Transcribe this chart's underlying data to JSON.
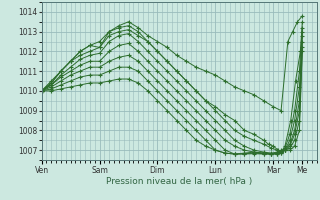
{
  "xlabel": "Pression niveau de la mer( hPa )",
  "bg_color": "#cce8e0",
  "grid_color": "#99bbbb",
  "line_color": "#2d6e2d",
  "marker": "+",
  "ylim": [
    1006.5,
    1014.5
  ],
  "yticks": [
    1007,
    1008,
    1009,
    1010,
    1011,
    1012,
    1013,
    1014
  ],
  "xtick_labels": [
    "Ven",
    "Sam",
    "Dim",
    "Lun",
    "Mar",
    "Me"
  ],
  "xtick_positions": [
    0,
    60,
    120,
    180,
    240,
    270
  ],
  "xlim": [
    0,
    285
  ],
  "series": [
    [
      [
        0,
        1010.0
      ],
      [
        10,
        1010.5
      ],
      [
        20,
        1011.0
      ],
      [
        30,
        1011.5
      ],
      [
        40,
        1011.8
      ],
      [
        50,
        1012.0
      ],
      [
        60,
        1012.2
      ],
      [
        70,
        1013.0
      ],
      [
        80,
        1013.3
      ],
      [
        90,
        1013.5
      ],
      [
        100,
        1013.2
      ],
      [
        110,
        1012.8
      ],
      [
        120,
        1012.5
      ],
      [
        130,
        1012.2
      ],
      [
        140,
        1011.8
      ],
      [
        150,
        1011.5
      ],
      [
        160,
        1011.2
      ],
      [
        170,
        1011.0
      ],
      [
        180,
        1010.8
      ],
      [
        190,
        1010.5
      ],
      [
        200,
        1010.2
      ],
      [
        210,
        1010.0
      ],
      [
        220,
        1009.8
      ],
      [
        230,
        1009.5
      ],
      [
        240,
        1009.2
      ],
      [
        248,
        1009.0
      ],
      [
        255,
        1012.5
      ],
      [
        260,
        1013.0
      ],
      [
        265,
        1013.5
      ],
      [
        270,
        1013.8
      ]
    ],
    [
      [
        0,
        1010.0
      ],
      [
        10,
        1010.4
      ],
      [
        20,
        1011.0
      ],
      [
        30,
        1011.5
      ],
      [
        40,
        1012.0
      ],
      [
        50,
        1012.3
      ],
      [
        60,
        1012.5
      ],
      [
        70,
        1013.0
      ],
      [
        80,
        1013.2
      ],
      [
        90,
        1013.3
      ],
      [
        100,
        1013.0
      ],
      [
        110,
        1012.5
      ],
      [
        120,
        1012.0
      ],
      [
        130,
        1011.5
      ],
      [
        140,
        1011.0
      ],
      [
        150,
        1010.5
      ],
      [
        160,
        1010.0
      ],
      [
        170,
        1009.5
      ],
      [
        180,
        1009.2
      ],
      [
        190,
        1008.8
      ],
      [
        200,
        1008.5
      ],
      [
        210,
        1008.0
      ],
      [
        220,
        1007.8
      ],
      [
        230,
        1007.5
      ],
      [
        235,
        1007.3
      ],
      [
        240,
        1007.2
      ],
      [
        245,
        1007.0
      ],
      [
        248,
        1006.9
      ],
      [
        252,
        1007.2
      ],
      [
        258,
        1008.5
      ],
      [
        263,
        1010.5
      ],
      [
        268,
        1012.0
      ],
      [
        270,
        1013.5
      ]
    ],
    [
      [
        0,
        1010.0
      ],
      [
        10,
        1010.4
      ],
      [
        20,
        1011.0
      ],
      [
        30,
        1011.5
      ],
      [
        40,
        1012.0
      ],
      [
        50,
        1012.3
      ],
      [
        60,
        1012.2
      ],
      [
        70,
        1012.8
      ],
      [
        80,
        1013.0
      ],
      [
        90,
        1013.1
      ],
      [
        100,
        1012.8
      ],
      [
        110,
        1012.5
      ],
      [
        120,
        1012.0
      ],
      [
        130,
        1011.5
      ],
      [
        140,
        1011.0
      ],
      [
        150,
        1010.5
      ],
      [
        160,
        1010.0
      ],
      [
        170,
        1009.5
      ],
      [
        180,
        1009.0
      ],
      [
        190,
        1008.5
      ],
      [
        200,
        1008.0
      ],
      [
        210,
        1007.7
      ],
      [
        220,
        1007.5
      ],
      [
        230,
        1007.3
      ],
      [
        238,
        1007.1
      ],
      [
        244,
        1007.0
      ],
      [
        248,
        1006.9
      ],
      [
        252,
        1007.1
      ],
      [
        257,
        1007.8
      ],
      [
        262,
        1009.0
      ],
      [
        267,
        1011.0
      ],
      [
        270,
        1013.2
      ]
    ],
    [
      [
        0,
        1010.0
      ],
      [
        10,
        1010.3
      ],
      [
        20,
        1010.8
      ],
      [
        30,
        1011.2
      ],
      [
        40,
        1011.6
      ],
      [
        50,
        1011.8
      ],
      [
        60,
        1011.9
      ],
      [
        70,
        1012.5
      ],
      [
        80,
        1012.8
      ],
      [
        90,
        1012.9
      ],
      [
        100,
        1012.5
      ],
      [
        110,
        1012.0
      ],
      [
        120,
        1011.5
      ],
      [
        130,
        1011.0
      ],
      [
        140,
        1010.5
      ],
      [
        150,
        1010.0
      ],
      [
        160,
        1009.5
      ],
      [
        170,
        1009.0
      ],
      [
        180,
        1008.5
      ],
      [
        190,
        1008.0
      ],
      [
        200,
        1007.5
      ],
      [
        210,
        1007.2
      ],
      [
        220,
        1007.0
      ],
      [
        230,
        1006.9
      ],
      [
        238,
        1006.85
      ],
      [
        244,
        1006.9
      ],
      [
        248,
        1007.0
      ],
      [
        252,
        1007.0
      ],
      [
        257,
        1007.5
      ],
      [
        262,
        1008.5
      ],
      [
        267,
        1010.2
      ],
      [
        270,
        1013.0
      ]
    ],
    [
      [
        0,
        1010.0
      ],
      [
        10,
        1010.3
      ],
      [
        20,
        1010.7
      ],
      [
        30,
        1011.0
      ],
      [
        40,
        1011.3
      ],
      [
        50,
        1011.5
      ],
      [
        60,
        1011.5
      ],
      [
        70,
        1012.0
      ],
      [
        80,
        1012.3
      ],
      [
        90,
        1012.4
      ],
      [
        100,
        1012.0
      ],
      [
        110,
        1011.5
      ],
      [
        120,
        1011.0
      ],
      [
        130,
        1010.5
      ],
      [
        140,
        1010.0
      ],
      [
        150,
        1009.5
      ],
      [
        160,
        1009.0
      ],
      [
        170,
        1008.5
      ],
      [
        180,
        1008.0
      ],
      [
        190,
        1007.5
      ],
      [
        200,
        1007.2
      ],
      [
        210,
        1007.0
      ],
      [
        220,
        1006.9
      ],
      [
        230,
        1006.85
      ],
      [
        238,
        1006.8
      ],
      [
        244,
        1006.85
      ],
      [
        248,
        1006.9
      ],
      [
        252,
        1007.0
      ],
      [
        257,
        1007.3
      ],
      [
        262,
        1008.0
      ],
      [
        267,
        1009.5
      ],
      [
        270,
        1012.8
      ]
    ],
    [
      [
        0,
        1010.0
      ],
      [
        10,
        1010.2
      ],
      [
        20,
        1010.5
      ],
      [
        30,
        1010.8
      ],
      [
        40,
        1011.0
      ],
      [
        50,
        1011.2
      ],
      [
        60,
        1011.2
      ],
      [
        70,
        1011.5
      ],
      [
        80,
        1011.7
      ],
      [
        90,
        1011.8
      ],
      [
        100,
        1011.5
      ],
      [
        110,
        1011.0
      ],
      [
        120,
        1010.5
      ],
      [
        130,
        1010.0
      ],
      [
        140,
        1009.5
      ],
      [
        150,
        1009.0
      ],
      [
        160,
        1008.5
      ],
      [
        170,
        1008.0
      ],
      [
        180,
        1007.5
      ],
      [
        190,
        1007.0
      ],
      [
        200,
        1006.8
      ],
      [
        210,
        1006.85
      ],
      [
        220,
        1006.9
      ],
      [
        230,
        1006.85
      ],
      [
        238,
        1006.8
      ],
      [
        244,
        1006.85
      ],
      [
        248,
        1006.9
      ],
      [
        252,
        1007.0
      ],
      [
        257,
        1007.2
      ],
      [
        262,
        1007.8
      ],
      [
        267,
        1009.0
      ],
      [
        270,
        1012.5
      ]
    ],
    [
      [
        0,
        1010.0
      ],
      [
        10,
        1010.1
      ],
      [
        20,
        1010.3
      ],
      [
        30,
        1010.5
      ],
      [
        40,
        1010.7
      ],
      [
        50,
        1010.8
      ],
      [
        60,
        1010.8
      ],
      [
        70,
        1011.0
      ],
      [
        80,
        1011.2
      ],
      [
        90,
        1011.2
      ],
      [
        100,
        1011.0
      ],
      [
        110,
        1010.5
      ],
      [
        120,
        1010.0
      ],
      [
        130,
        1009.5
      ],
      [
        140,
        1009.0
      ],
      [
        150,
        1008.5
      ],
      [
        160,
        1008.0
      ],
      [
        170,
        1007.5
      ],
      [
        180,
        1007.0
      ],
      [
        190,
        1006.85
      ],
      [
        200,
        1006.8
      ],
      [
        210,
        1006.82
      ],
      [
        220,
        1006.85
      ],
      [
        230,
        1006.82
      ],
      [
        238,
        1006.8
      ],
      [
        244,
        1006.82
      ],
      [
        248,
        1006.85
      ],
      [
        252,
        1007.0
      ],
      [
        257,
        1007.1
      ],
      [
        262,
        1007.5
      ],
      [
        267,
        1008.5
      ],
      [
        270,
        1012.2
      ]
    ],
    [
      [
        0,
        1010.0
      ],
      [
        10,
        1010.0
      ],
      [
        20,
        1010.1
      ],
      [
        30,
        1010.2
      ],
      [
        40,
        1010.3
      ],
      [
        50,
        1010.4
      ],
      [
        60,
        1010.4
      ],
      [
        70,
        1010.5
      ],
      [
        80,
        1010.6
      ],
      [
        90,
        1010.6
      ],
      [
        100,
        1010.4
      ],
      [
        110,
        1010.0
      ],
      [
        120,
        1009.5
      ],
      [
        130,
        1009.0
      ],
      [
        140,
        1008.5
      ],
      [
        150,
        1008.0
      ],
      [
        160,
        1007.5
      ],
      [
        170,
        1007.2
      ],
      [
        180,
        1007.0
      ],
      [
        190,
        1006.85
      ],
      [
        200,
        1006.8
      ],
      [
        210,
        1006.8
      ],
      [
        220,
        1006.82
      ],
      [
        230,
        1006.8
      ],
      [
        238,
        1006.8
      ],
      [
        244,
        1006.8
      ],
      [
        248,
        1006.85
      ],
      [
        252,
        1007.0
      ],
      [
        257,
        1007.0
      ],
      [
        262,
        1007.2
      ],
      [
        267,
        1008.0
      ],
      [
        270,
        1012.0
      ]
    ]
  ]
}
